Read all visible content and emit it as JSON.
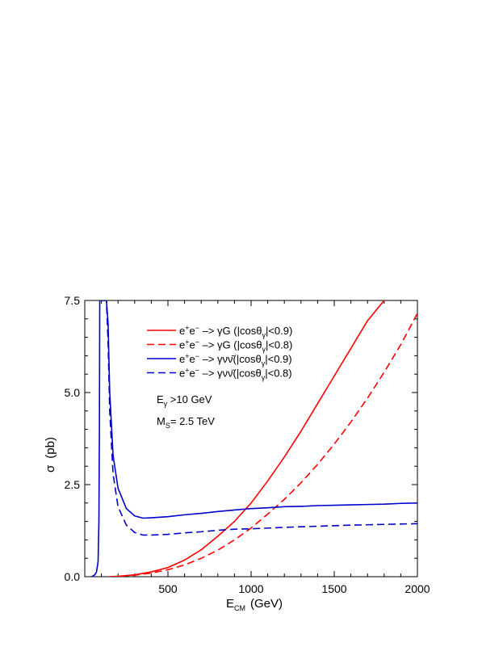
{
  "chart_data": {
    "type": "line",
    "title": "",
    "xlabel": "E",
    "xlabel_sub": "CM",
    "xlabel_unit": "(GeV)",
    "ylabel": "σ",
    "ylabel_unit": "(pb)",
    "xlim": [
      0,
      2000
    ],
    "ylim": [
      0,
      7.5
    ],
    "x_ticks": [
      500,
      1000,
      1500,
      2000
    ],
    "x_tick_labels": [
      "500",
      "1000",
      "1500",
      "2000"
    ],
    "y_ticks": [
      0,
      2.5,
      5,
      7.5
    ],
    "y_tick_labels": [
      "0.0",
      "2.5",
      "5.0",
      "7.5"
    ],
    "grid": false,
    "legend_position": "top-left",
    "annotations": [
      {
        "main": "E",
        "sub": "γ",
        "rest": " >10 GeV"
      },
      {
        "main": "M",
        "sub": "S",
        "rest": "= 2.5 TeV"
      }
    ],
    "series": [
      {
        "name": "e+e− –> γG (|cosθγ|<0.9)",
        "legend": {
          "pre": "e",
          "s1": "+",
          "mid": "e",
          "s2": "−",
          "post": " –> γG (|cosθ",
          "s3": "γ",
          "end": "|<0.9)"
        },
        "color": "#ff0000",
        "dash": "solid",
        "x": [
          150,
          200,
          300,
          400,
          500,
          600,
          700,
          800,
          900,
          1000,
          1100,
          1200,
          1300,
          1400,
          1500,
          1600,
          1700,
          1800
        ],
        "y": [
          0.0,
          0.01,
          0.05,
          0.13,
          0.25,
          0.45,
          0.73,
          1.1,
          1.5,
          2.0,
          2.6,
          3.25,
          3.95,
          4.7,
          5.45,
          6.2,
          6.95,
          7.5
        ]
      },
      {
        "name": "e+e− –> γG (|cosθγ|<0.8)",
        "legend": {
          "pre": "e",
          "s1": "+",
          "mid": "e",
          "s2": "−",
          "post": " –> γG (|cosθ",
          "s3": "γ",
          "end": "|<0.8)"
        },
        "color": "#ff0000",
        "dash": "dashed",
        "x": [
          150,
          200,
          300,
          400,
          500,
          600,
          700,
          800,
          900,
          1000,
          1100,
          1200,
          1300,
          1400,
          1500,
          1600,
          1700,
          1800,
          1900,
          2000
        ],
        "y": [
          0.0,
          0.01,
          0.04,
          0.1,
          0.19,
          0.32,
          0.5,
          0.72,
          1.0,
          1.32,
          1.7,
          2.1,
          2.55,
          3.05,
          3.6,
          4.2,
          4.85,
          5.55,
          6.3,
          7.15
        ]
      },
      {
        "name": "e+e− –> γνν̄(|cosθγ|<0.9)",
        "legend": {
          "pre": "e",
          "s1": "+",
          "mid": "e",
          "s2": "−",
          "post": " –> γνν̄(|cosθ",
          "s3": "γ",
          "end": "|<0.9)"
        },
        "color": "#0000cc",
        "dash": "solid",
        "x": [
          40,
          50,
          60,
          70,
          80,
          85,
          88,
          90,
          92,
          94,
          100,
          110,
          120,
          130,
          140,
          150,
          170,
          200,
          250,
          300,
          350,
          400,
          500,
          600,
          700,
          800,
          900,
          1000,
          1100,
          1200,
          1300,
          1400,
          1500,
          1600,
          1700,
          1800,
          1900,
          2000
        ],
        "y": [
          0.0,
          0.02,
          0.05,
          0.12,
          0.4,
          1.5,
          4.0,
          7.5,
          7.5,
          7.5,
          7.5,
          7.5,
          7.5,
          7.5,
          6.9,
          5.0,
          3.3,
          2.4,
          1.85,
          1.65,
          1.59,
          1.6,
          1.63,
          1.68,
          1.72,
          1.77,
          1.81,
          1.85,
          1.87,
          1.9,
          1.91,
          1.93,
          1.94,
          1.95,
          1.96,
          1.97,
          1.99,
          2.0
        ]
      },
      {
        "name": "e+e− –> γνν̄(|cosθγ|<0.8)",
        "legend": {
          "pre": "e",
          "s1": "+",
          "mid": "e",
          "s2": "−",
          "post": " –> γνν̄(|cosθ",
          "s3": "γ",
          "end": "|<0.8)"
        },
        "color": "#0000cc",
        "dash": "dashed",
        "x": [
          100,
          110,
          120,
          130,
          140,
          150,
          170,
          200,
          250,
          300,
          350,
          400,
          500,
          600,
          700,
          800,
          900,
          1000,
          1200,
          1400,
          1600,
          1800,
          2000
        ],
        "y": [
          7.5,
          7.5,
          7.5,
          7.5,
          6.4,
          4.5,
          2.8,
          1.9,
          1.4,
          1.2,
          1.13,
          1.13,
          1.15,
          1.19,
          1.22,
          1.26,
          1.29,
          1.3,
          1.34,
          1.37,
          1.4,
          1.42,
          1.44
        ]
      }
    ]
  }
}
